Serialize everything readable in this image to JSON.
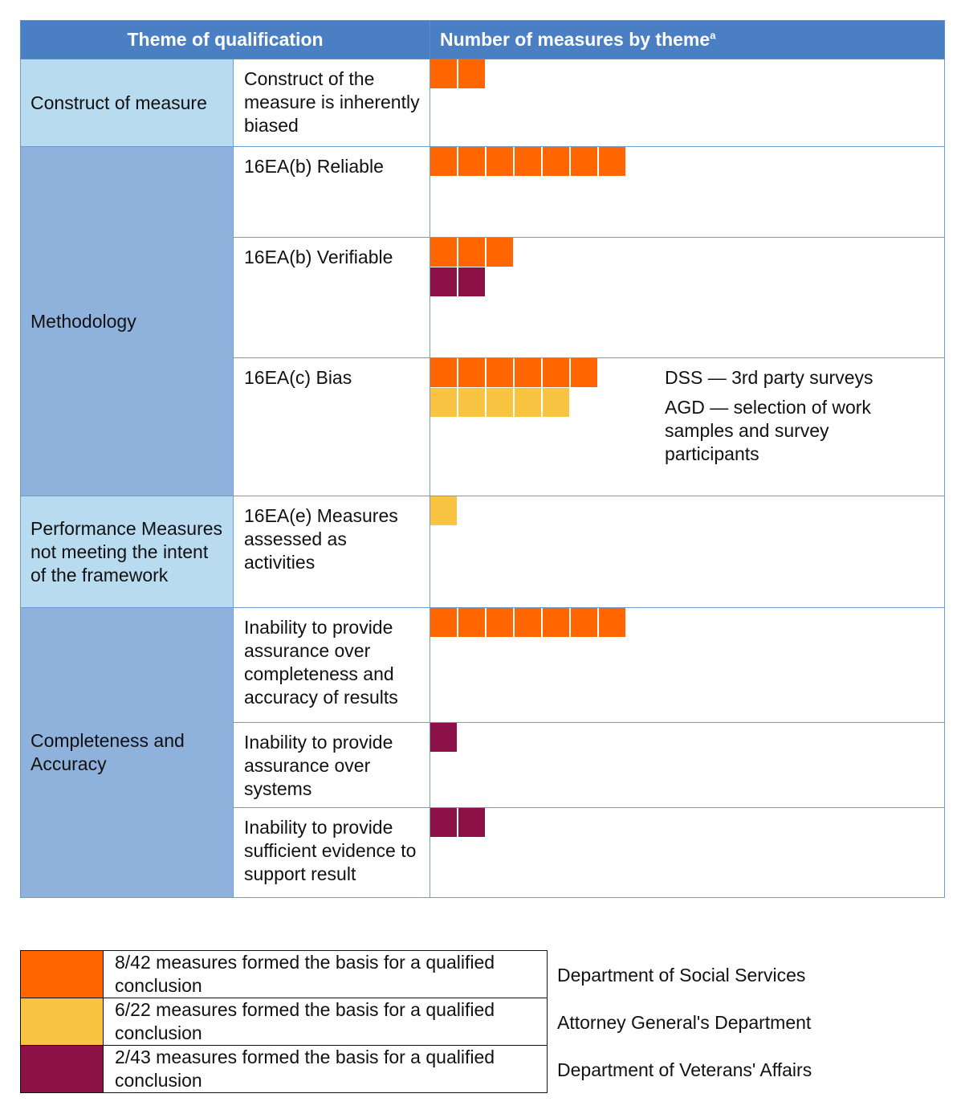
{
  "header": {
    "theme_col": "Theme of qualification",
    "measures_col": "Number of measures by theme",
    "measures_sup": "a"
  },
  "colors": {
    "dss": "#ff6600",
    "agd": "#f8c442",
    "dva": "#8b1146",
    "header": "#4a7fc3"
  },
  "chart_data": {
    "type": "table",
    "unit": "measures",
    "themes": [
      {
        "theme": "Construct of measure",
        "rows": [
          {
            "label": "Construct of the measure is inherently biased",
            "dss": 2,
            "agd": 0,
            "dva": 0
          }
        ]
      },
      {
        "theme": "Methodology",
        "rows": [
          {
            "label": "16EA(b) Reliable",
            "dss": 7,
            "agd": 0,
            "dva": 0
          },
          {
            "label": "16EA(b) Verifiable",
            "dss": 3,
            "agd": 0,
            "dva": 2
          },
          {
            "label": "16EA(c) Bias",
            "dss": 6,
            "agd": 5,
            "dva": 0,
            "notes": [
              "DSS — 3rd party surveys",
              "AGD — selection of work samples and survey participants"
            ]
          }
        ]
      },
      {
        "theme": "Performance Measures not meeting the intent of the framework",
        "rows": [
          {
            "label": "16EA(e) Measures assessed as activities",
            "dss": 0,
            "agd": 1,
            "dva": 0
          }
        ]
      },
      {
        "theme": "Completeness and Accuracy",
        "rows": [
          {
            "label": "Inability to provide assurance over completeness and accuracy of results",
            "dss": 7,
            "agd": 0,
            "dva": 0
          },
          {
            "label": "Inability to provide assurance over systems",
            "dss": 0,
            "agd": 0,
            "dva": 1
          },
          {
            "label": "Inability to provide sufficient evidence to support result",
            "dss": 0,
            "agd": 0,
            "dva": 2
          }
        ]
      }
    ],
    "legend": [
      {
        "key": "dss",
        "text": "8/42 measures formed the basis for a qualified conclusion",
        "department": "Department of Social Services"
      },
      {
        "key": "agd",
        "text": "6/22 measures formed the basis for a qualified conclusion",
        "department": "Attorney General's Department"
      },
      {
        "key": "dva",
        "text": "2/43 measures formed the basis for a qualified conclusion",
        "department": "Department of Veterans' Affairs"
      }
    ]
  }
}
